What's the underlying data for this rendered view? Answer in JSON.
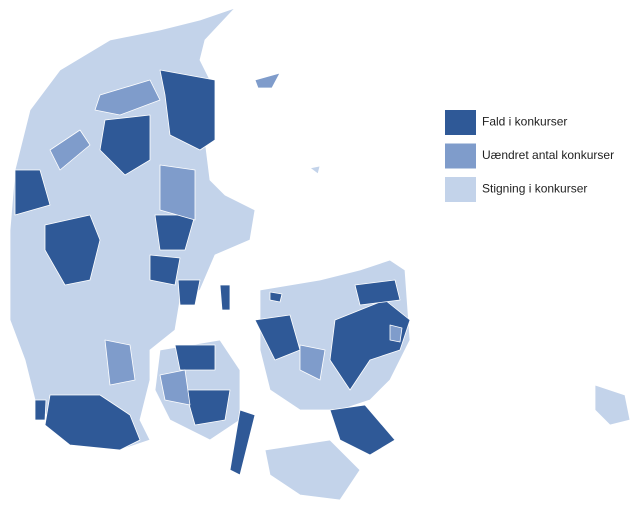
{
  "legend": {
    "items": [
      {
        "label": "Fald i konkurser",
        "color": "#2f5997"
      },
      {
        "label": "Uændret antal konkurser",
        "color": "#7f9ccb"
      },
      {
        "label": "Stigning i konkurser",
        "color": "#c3d3ea"
      }
    ]
  }
}
